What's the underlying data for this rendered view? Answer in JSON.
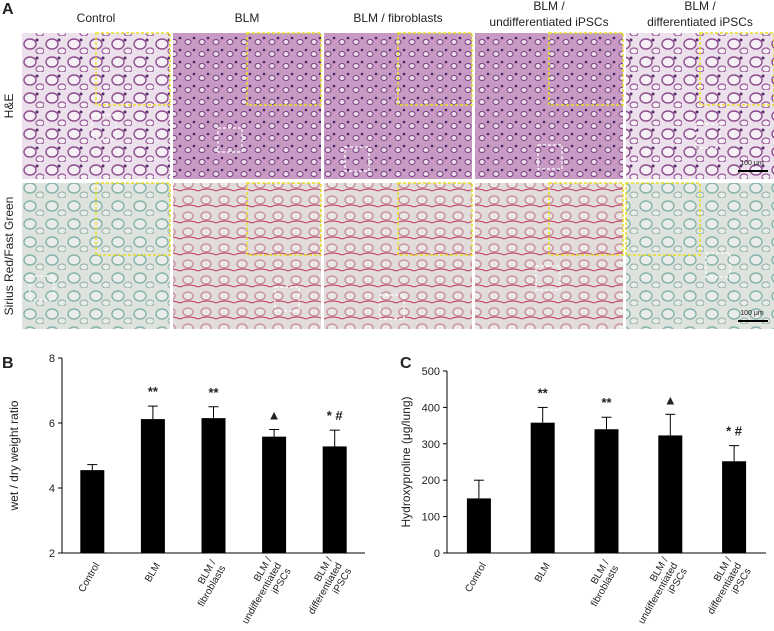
{
  "panel_a": {
    "label": "A",
    "columns": [
      [
        "Control"
      ],
      [
        "BLM"
      ],
      [
        "BLM / fibroblasts"
      ],
      [
        "BLM /",
        "undifferentiated   iPSCs"
      ],
      [
        "BLM /",
        "differentiated   iPSCs"
      ]
    ],
    "rows": [
      "H&E",
      "Sirius Red/Fast Green"
    ],
    "scale_bars": [
      "100 μm",
      "100 μm"
    ]
  },
  "chart_data": [
    {
      "type": "bar",
      "panel_label": "B",
      "ylabel": "wet / dry weight ratio",
      "categories": [
        [
          "Control"
        ],
        [
          "BLM"
        ],
        [
          "BLM /",
          "fibroblasts"
        ],
        [
          "BLM /",
          "undifferentiated",
          "iPSCs"
        ],
        [
          "BLM /",
          "differentiated",
          "iPSCs"
        ]
      ],
      "values": [
        4.55,
        6.12,
        6.15,
        5.58,
        5.28
      ],
      "errors": [
        0.17,
        0.4,
        0.35,
        0.22,
        0.5
      ],
      "annotations": [
        null,
        "**",
        "**",
        "▲",
        "* #"
      ],
      "color": "#000000",
      "ylim": [
        2,
        8
      ],
      "yticks": [
        2,
        4,
        6,
        8
      ]
    },
    {
      "type": "bar",
      "panel_label": "C",
      "ylabel": "Hydroxyproline (μg/lung)",
      "categories": [
        [
          "Control"
        ],
        [
          "BLM"
        ],
        [
          "BLM /",
          "fibroblasts"
        ],
        [
          "BLM /",
          "undifferentiated",
          "iPSCs"
        ],
        [
          "BLM /",
          "differentiated",
          "iPSCs"
        ]
      ],
      "values": [
        150,
        358,
        340,
        323,
        252
      ],
      "errors": [
        50,
        42,
        33,
        58,
        43
      ],
      "annotations": [
        null,
        "**",
        "**",
        "▲",
        "* #"
      ],
      "color": "#000000",
      "ylim": [
        0,
        500
      ],
      "yticks": [
        0,
        100,
        200,
        300,
        400,
        500
      ]
    }
  ]
}
